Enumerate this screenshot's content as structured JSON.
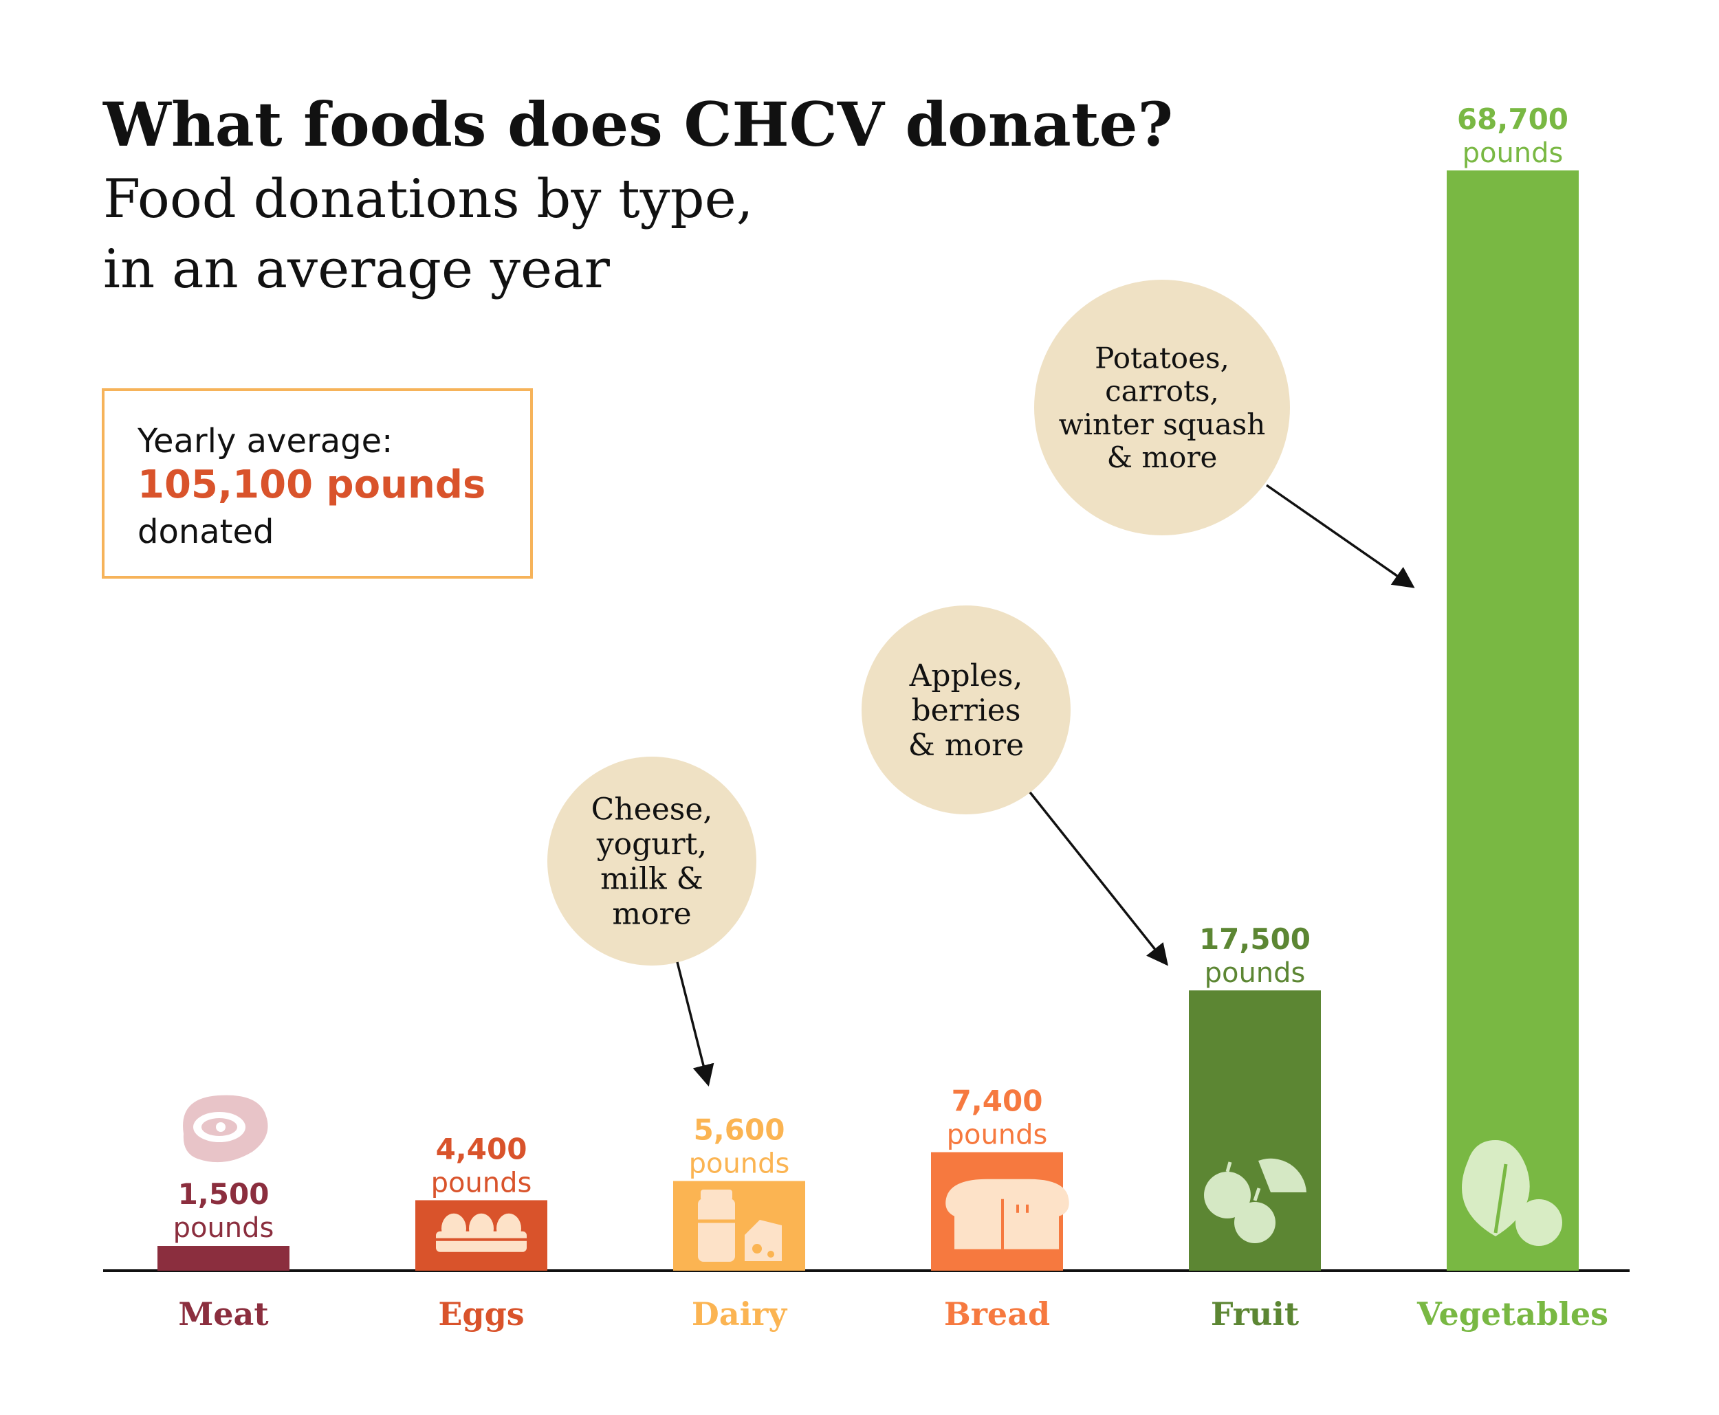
{
  "title": "What foods does CHCV donate?",
  "subtitle_line1": "Food donations by type,",
  "subtitle_line2": "in an average year",
  "summary": {
    "label": "Yearly average:",
    "value": "105,100 pounds",
    "suffix": "donated"
  },
  "chart_data": {
    "type": "bar",
    "categories": [
      "Meat",
      "Eggs",
      "Dairy",
      "Bread",
      "Fruit",
      "Vegetables"
    ],
    "values": [
      1500,
      4400,
      5600,
      7400,
      17500,
      68700
    ],
    "value_labels": [
      "1,500",
      "4,400",
      "5,600",
      "7,400",
      "17,500",
      "68,700"
    ],
    "unit_label": "pounds",
    "colors": [
      "#8b2e3e",
      "#d9532b",
      "#fbb452",
      "#f6793f",
      "#5c8633",
      "#79b843"
    ],
    "icons": [
      "steak-icon",
      "eggs-icon",
      "milk-cheese-icon",
      "bread-icon",
      "fruit-icon",
      "vegetable-icon"
    ],
    "ylim": [
      0,
      68700
    ],
    "annotations": [
      {
        "category": "Dairy",
        "lines": [
          "Cheese,",
          "yogurt,",
          "milk &",
          "more"
        ]
      },
      {
        "category": "Fruit",
        "lines": [
          "Apples,",
          "berries",
          "& more"
        ]
      },
      {
        "category": "Vegetables",
        "lines": [
          "Potatoes,",
          "carrots,",
          "winter squash",
          "& more"
        ]
      }
    ]
  },
  "colors": {
    "summary_border": "#f6b35a",
    "summary_value": "#d9532b",
    "bubble_fill": "#efe1c4",
    "meat_icon": "#e8c4c8"
  }
}
